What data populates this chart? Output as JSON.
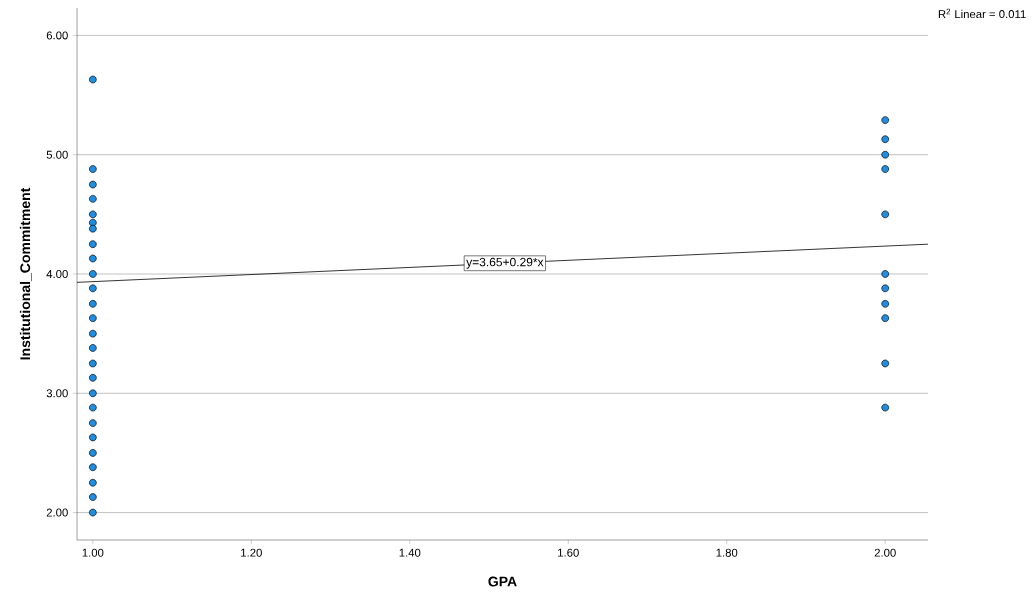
{
  "chart_data": {
    "type": "scatter",
    "xlabel": "GPA",
    "ylabel": "Institutional_Commitment",
    "xlim": [
      0.98,
      2.054
    ],
    "ylim": [
      1.77,
      6.23
    ],
    "xticks": [
      {
        "value": 1,
        "label": "1.00"
      },
      {
        "value": 1.2,
        "label": "1.20"
      },
      {
        "value": 1.4,
        "label": "1.40"
      },
      {
        "value": 1.6,
        "label": "1.60"
      },
      {
        "value": 1.8,
        "label": "1.80"
      },
      {
        "value": 2,
        "label": "2.00"
      }
    ],
    "yticks": [
      {
        "value": 2,
        "label": "2.00"
      },
      {
        "value": 3,
        "label": "3.00"
      },
      {
        "value": 4,
        "label": "4.00"
      },
      {
        "value": 5,
        "label": "5.00"
      },
      {
        "value": 6,
        "label": "6.00"
      }
    ],
    "grid": "y",
    "series": [
      {
        "color": "#1f8ee0",
        "marker": "circle",
        "x": [
          1,
          1,
          1,
          1,
          1,
          1,
          1,
          1,
          1,
          1,
          1,
          1,
          1,
          1,
          1,
          1,
          1,
          1,
          1,
          1,
          1,
          1,
          1,
          1,
          1,
          1,
          2,
          2,
          2,
          2,
          2,
          2,
          2,
          2,
          2,
          2,
          2
        ],
        "values": [
          5.63,
          4.88,
          4.75,
          4.63,
          4.5,
          4.43,
          4.38,
          4.25,
          4.13,
          4.0,
          3.88,
          3.75,
          3.63,
          3.5,
          3.38,
          3.25,
          3.13,
          3.0,
          2.88,
          2.75,
          2.63,
          2.5,
          2.38,
          2.25,
          2.13,
          2.0,
          5.29,
          5.13,
          5.0,
          4.88,
          4.5,
          4.0,
          3.88,
          3.75,
          3.63,
          3.25,
          2.88
        ]
      },
      {
        "type": "line",
        "color": "#000000",
        "marker": "none",
        "x": [
          0.98,
          2.054
        ],
        "values": [
          3.93,
          4.25
        ]
      }
    ],
    "annotations": [
      {
        "text": "y=3.65+0.29*x",
        "x": 1.52,
        "y": 4.09
      },
      "R$^{2}$ Linear = 0.011"
    ]
  }
}
